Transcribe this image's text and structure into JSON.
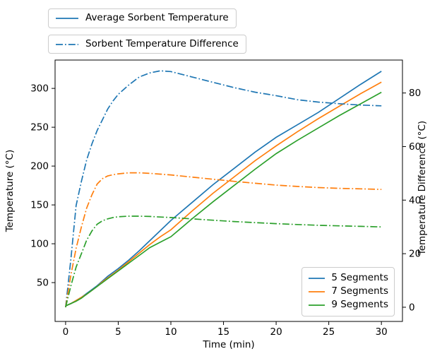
{
  "figure": {
    "background": "#ffffff"
  },
  "chart_data": {
    "type": "line",
    "title": "",
    "xlabel": "Time (min)",
    "ylabel_left": "Temperature (°C)",
    "ylabel_right": "Temperature Difference (°C)",
    "xlim": [
      -1,
      32
    ],
    "ylim_left": [
      0,
      336.5
    ],
    "ylim_right": [
      -5.3,
      92.3
    ],
    "grid": false,
    "x_ticks": [
      0,
      5,
      10,
      15,
      20,
      25,
      30
    ],
    "y_ticks_left": [
      50,
      100,
      150,
      200,
      250,
      300
    ],
    "y_ticks_right": [
      0,
      20,
      40,
      60,
      80
    ],
    "x": [
      0,
      0.5,
      1,
      1.5,
      2,
      2.5,
      3,
      3.5,
      4,
      4.5,
      5,
      6,
      7,
      8,
      9,
      10,
      12,
      14,
      16,
      18,
      20,
      22,
      24,
      26,
      28,
      30
    ],
    "series": [
      {
        "name": "5 Segments Average Sorbent Temperature",
        "axis": "left",
        "line_style": "solid",
        "color": "#1f77b4",
        "values": [
          20,
          23,
          27,
          31,
          36,
          41,
          46,
          52,
          58,
          63,
          68,
          79,
          91,
          104,
          117,
          130,
          153,
          176,
          197,
          218,
          237,
          253,
          269,
          287,
          305,
          322
        ]
      },
      {
        "name": "7 Segments Average Sorbent Temperature",
        "axis": "left",
        "line_style": "solid",
        "color": "#ff7f0e",
        "values": [
          20,
          23,
          27,
          31,
          35,
          40,
          45,
          51,
          56,
          61,
          66,
          77,
          88,
          99,
          109,
          118,
          142,
          165,
          186,
          207,
          226,
          244,
          261,
          277,
          293,
          308
        ]
      },
      {
        "name": "9 Segments Average Sorbent Temperature",
        "axis": "left",
        "line_style": "solid",
        "color": "#2ca02c",
        "values": [
          20,
          23,
          26,
          30,
          35,
          40,
          45,
          50,
          55,
          60,
          65,
          75,
          85,
          95,
          102,
          109,
          132,
          154,
          175,
          196,
          216,
          233,
          249,
          265,
          280,
          295
        ]
      },
      {
        "name": "5 Segments Sorbent Temperature Difference",
        "axis": "right",
        "line_style": "dashdot",
        "color": "#1f77b4",
        "values": [
          0,
          18,
          38,
          47,
          55,
          61,
          66,
          70,
          74,
          77,
          79.5,
          83,
          86,
          87.5,
          88.3,
          88,
          86,
          84,
          82,
          80.3,
          79,
          77.5,
          76.6,
          76,
          75.5,
          75.2
        ]
      },
      {
        "name": "7 Segments Sorbent Temperature Difference",
        "axis": "right",
        "line_style": "dashdot",
        "color": "#ff7f0e",
        "values": [
          0,
          12,
          22,
          30,
          37,
          42,
          46,
          48,
          49,
          49.5,
          49.8,
          50.2,
          50.2,
          50,
          49.7,
          49.4,
          48.6,
          47.8,
          47,
          46.3,
          45.6,
          45.1,
          44.7,
          44.4,
          44.2,
          44
        ]
      },
      {
        "name": "9 Segments Sorbent Temperature Difference",
        "axis": "right",
        "line_style": "dashdot",
        "color": "#2ca02c",
        "values": [
          0,
          8,
          15,
          20,
          25,
          28.5,
          31,
          32.3,
          33,
          33.5,
          33.8,
          34,
          34,
          33.9,
          33.7,
          33.5,
          33,
          32.5,
          32,
          31.6,
          31.2,
          30.9,
          30.6,
          30.4,
          30.2,
          30
        ]
      }
    ],
    "legend_style": {
      "color": "#1f77b4",
      "entries": [
        {
          "label": "Average Sorbent Temperature",
          "line_style": "solid"
        },
        {
          "label": "Sorbent Temperature Difference",
          "line_style": "dashdot"
        }
      ]
    },
    "legend_segments": {
      "entries": [
        {
          "label": "5 Segments",
          "color": "#1f77b4"
        },
        {
          "label": "7 Segments",
          "color": "#ff7f0e"
        },
        {
          "label": "9 Segments",
          "color": "#2ca02c"
        }
      ]
    }
  }
}
